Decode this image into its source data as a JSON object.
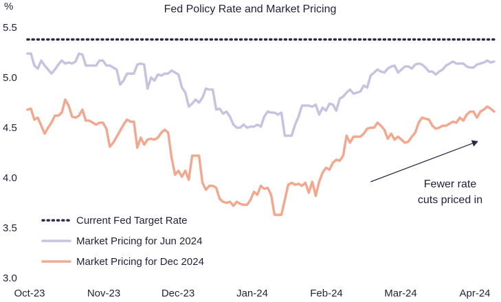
{
  "chart_data": {
    "type": "line",
    "title": "Fed Policy Rate and Market Pricing",
    "ylabel": "%",
    "xlabel": "",
    "ylim": [
      3.0,
      5.5
    ],
    "yticks": [
      "3.0",
      "3.5",
      "4.0",
      "4.5",
      "5.0",
      "5.5"
    ],
    "yticks_values": [
      3.0,
      3.5,
      4.0,
      4.5,
      5.0,
      5.5
    ],
    "x_tick_labels": [
      "Oct-23",
      "Nov-23",
      "Dec-23",
      "Jan-24",
      "Feb-24",
      "Mar-24",
      "Apr-24"
    ],
    "n_points": 137,
    "grid": false,
    "legend_placement": "bottom-left",
    "annotation": {
      "lines": [
        "Fewer rate",
        "cuts priced in"
      ],
      "from_index": 100,
      "from_value": 3.96,
      "to_index": 131,
      "to_value": 4.36
    },
    "series": [
      {
        "name": "Current Fed Target Rate",
        "color": "#2a2a4a",
        "style": "dotted",
        "constant": 5.38
      },
      {
        "name": "Market Pricing for Jun 2024",
        "color": "#c7c2e0",
        "style": "solid",
        "values": [
          5.24,
          5.24,
          5.12,
          5.09,
          5.17,
          5.12,
          5.08,
          5.04,
          5.08,
          5.13,
          5.17,
          5.14,
          5.15,
          5.14,
          5.16,
          5.24,
          5.23,
          5.12,
          5.12,
          5.12,
          5.12,
          5.17,
          5.17,
          5.12,
          5.12,
          5.1,
          5.08,
          4.93,
          4.97,
          5.04,
          5.04,
          5.04,
          5.13,
          5.14,
          5.13,
          4.89,
          5.0,
          4.97,
          5.03,
          5.02,
          5.04,
          5.04,
          5.07,
          5.05,
          5.03,
          4.9,
          4.85,
          4.71,
          4.74,
          4.78,
          4.75,
          4.8,
          4.89,
          4.88,
          4.88,
          4.68,
          4.69,
          4.64,
          4.66,
          4.61,
          4.53,
          4.5,
          4.5,
          4.53,
          4.5,
          4.51,
          4.51,
          4.53,
          4.51,
          4.61,
          4.66,
          4.65,
          4.65,
          4.63,
          4.65,
          4.42,
          4.42,
          4.42,
          4.53,
          4.61,
          4.72,
          4.72,
          4.72,
          4.71,
          4.73,
          4.63,
          4.7,
          4.67,
          4.74,
          4.73,
          4.67,
          4.79,
          4.81,
          4.85,
          4.88,
          4.84,
          4.85,
          4.86,
          4.92,
          4.9,
          5.02,
          5.05,
          5.08,
          5.06,
          5.05,
          5.09,
          5.11,
          5.12,
          5.05,
          5.08,
          5.11,
          5.11,
          5.09,
          5.13,
          5.14,
          5.13,
          5.1,
          5.06,
          5.06,
          5.03,
          5.06,
          5.08,
          5.12,
          5.14,
          5.16,
          5.14,
          5.14,
          5.14,
          5.11,
          5.1,
          5.1,
          5.13,
          5.14,
          5.15,
          5.17,
          5.15,
          5.16
        ]
      },
      {
        "name": "Market Pricing for Dec 2024",
        "color": "#f2a88e",
        "style": "solid",
        "values": [
          4.68,
          4.69,
          4.58,
          4.6,
          4.52,
          4.44,
          4.5,
          4.55,
          4.62,
          4.62,
          4.65,
          4.78,
          4.72,
          4.61,
          4.6,
          4.62,
          4.68,
          4.57,
          4.57,
          4.55,
          4.53,
          4.55,
          4.55,
          4.49,
          4.31,
          4.35,
          4.41,
          4.47,
          4.53,
          4.58,
          4.56,
          4.56,
          4.3,
          4.4,
          4.33,
          4.38,
          4.39,
          4.38,
          4.4,
          4.45,
          4.48,
          4.45,
          4.2,
          4.03,
          4.07,
          4.01,
          4.07,
          3.98,
          4.22,
          4.22,
          4.22,
          3.95,
          3.88,
          3.92,
          3.92,
          3.9,
          3.79,
          3.76,
          3.75,
          3.76,
          3.72,
          3.76,
          3.74,
          3.73,
          3.73,
          3.78,
          3.86,
          3.83,
          3.92,
          3.89,
          3.9,
          3.83,
          3.63,
          3.63,
          3.63,
          3.78,
          3.93,
          3.95,
          3.93,
          3.94,
          3.92,
          3.95,
          3.85,
          3.96,
          3.82,
          3.96,
          4.05,
          4.1,
          4.08,
          4.15,
          4.18,
          4.17,
          4.22,
          4.42,
          4.35,
          4.41,
          4.41,
          4.41,
          4.44,
          4.49,
          4.5,
          4.5,
          4.55,
          4.52,
          4.48,
          4.39,
          4.44,
          4.38,
          4.41,
          4.38,
          4.35,
          4.36,
          4.41,
          4.45,
          4.55,
          4.6,
          4.59,
          4.58,
          4.52,
          4.49,
          4.5,
          4.52,
          4.52,
          4.54,
          4.56,
          4.55,
          4.6,
          4.57,
          4.63,
          4.66,
          4.66,
          4.6,
          4.66,
          4.68,
          4.71,
          4.69,
          4.66
        ]
      }
    ]
  }
}
